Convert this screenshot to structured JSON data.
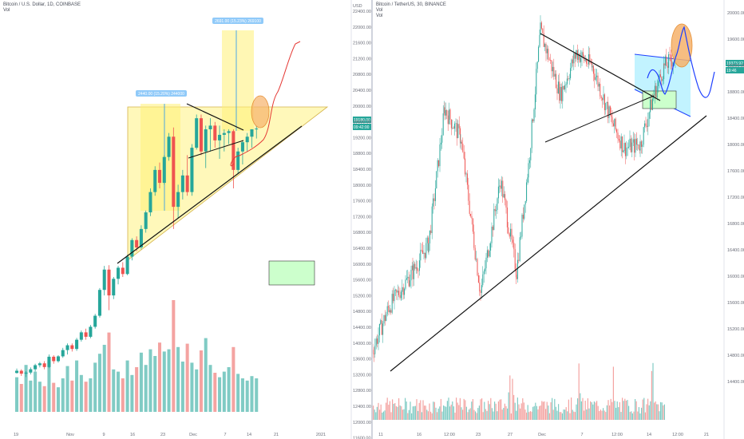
{
  "colors": {
    "up": "#26a69a",
    "down": "#ef5350",
    "vol_up": "#80cbc4",
    "vol_down": "#f4a3a1",
    "triangle_fill": "#fff59d",
    "box_fill": "#ccffcc",
    "range_fill": "#fff176",
    "range_label": "#90caf9",
    "channel_fill": "#b3f0ff",
    "ellipse_fill": "#f6b26b",
    "price_badge": "#26a69a",
    "projection_red": "#e53935",
    "projection_blue": "#1e40ff"
  },
  "left": {
    "title": "Bitcoin / U.S. Dollar, 1D, COINBASE",
    "vol_label": "Vol",
    "currency": "USD",
    "y_ticks": [
      "22400.00",
      "22000.00",
      "21600.00",
      "21200.00",
      "20800.00",
      "20400.00",
      "20000.00",
      "19600.00",
      "19200.00",
      "18800.00",
      "18400.00",
      "18000.00",
      "17600.00",
      "17200.00",
      "16800.00",
      "16400.00",
      "16000.00",
      "15600.00",
      "15200.00",
      "14800.00",
      "14400.00",
      "14000.00",
      "13600.00",
      "13200.00",
      "12800.00",
      "12400.00",
      "12000.00",
      "11600.00"
    ],
    "x_ticks": [
      "19",
      "Nov",
      "9",
      "16",
      "23",
      "Dec",
      "7",
      "14",
      "21",
      "2021"
    ],
    "price_badges": [
      "19180.00",
      "09:42:00"
    ],
    "range_labels": [
      "2440.00 (15.20%) 244000",
      "2691.00 (15.23%) 269100"
    ],
    "chart_data": {
      "type": "candlestick",
      "timeframe": "1D",
      "ylim": [
        11400,
        22600
      ],
      "candles": [
        [
          12800,
          12920,
          12780,
          12860
        ],
        [
          12860,
          12900,
          12720,
          12780
        ],
        [
          12780,
          12850,
          12690,
          12810
        ],
        [
          12810,
          12950,
          12760,
          12900
        ],
        [
          12900,
          13050,
          12840,
          13010
        ],
        [
          13010,
          13100,
          12950,
          13060
        ],
        [
          13060,
          13120,
          12900,
          12960
        ],
        [
          12960,
          13300,
          12930,
          13240
        ],
        [
          13240,
          13280,
          13050,
          13120
        ],
        [
          13120,
          13280,
          13080,
          13250
        ],
        [
          13250,
          13480,
          13210,
          13420
        ],
        [
          13420,
          13600,
          13300,
          13550
        ],
        [
          13550,
          13600,
          13380,
          13450
        ],
        [
          13450,
          13750,
          13400,
          13700
        ],
        [
          13700,
          13950,
          13650,
          13900
        ],
        [
          13900,
          14000,
          13700,
          13780
        ],
        [
          13780,
          14100,
          13740,
          14050
        ],
        [
          14050,
          14400,
          14000,
          14350
        ],
        [
          14350,
          15100,
          14300,
          15050
        ],
        [
          15050,
          15700,
          14900,
          15600
        ],
        [
          15600,
          15720,
          14500,
          14900
        ],
        [
          14900,
          15400,
          14800,
          15350
        ],
        [
          15350,
          15700,
          15200,
          15650
        ],
        [
          15650,
          15800,
          15400,
          15480
        ],
        [
          15480,
          16000,
          15450,
          15950
        ],
        [
          15950,
          16450,
          15850,
          16400
        ],
        [
          16400,
          16500,
          16100,
          16200
        ],
        [
          16200,
          16800,
          16150,
          16700
        ],
        [
          16700,
          17200,
          16600,
          17150
        ],
        [
          17150,
          17800,
          17050,
          17700
        ],
        [
          17700,
          18400,
          17600,
          18300
        ],
        [
          18300,
          18500,
          17800,
          17950
        ],
        [
          17950,
          18700,
          17900,
          18650
        ],
        [
          18650,
          19300,
          18550,
          19200
        ],
        [
          19200,
          19450,
          16700,
          17300
        ],
        [
          17300,
          17900,
          17000,
          17700
        ],
        [
          17700,
          18300,
          17500,
          18150
        ],
        [
          18150,
          18700,
          17600,
          17700
        ],
        [
          17700,
          19000,
          17600,
          18900
        ],
        [
          18900,
          19800,
          18850,
          19700
        ],
        [
          19700,
          19800,
          18700,
          18800
        ],
        [
          18800,
          19500,
          18350,
          19400
        ],
        [
          19400,
          19700,
          18800,
          19500
        ],
        [
          19500,
          19600,
          18900,
          19100
        ],
        [
          19100,
          19500,
          18600,
          19250
        ],
        [
          19250,
          19400,
          18800,
          19300
        ],
        [
          19300,
          19400,
          19000,
          19350
        ],
        [
          19350,
          19400,
          17800,
          18300
        ],
        [
          18300,
          18900,
          18200,
          18800
        ],
        [
          18800,
          19100,
          18450,
          19050
        ],
        [
          19050,
          19300,
          18800,
          19200
        ],
        [
          19200,
          19400,
          18900,
          19400
        ],
        [
          19400,
          19500,
          19150,
          19420
        ]
      ],
      "volume": [
        0.31,
        0.25,
        0.42,
        0.28,
        0.36,
        0.27,
        0.23,
        0.45,
        0.26,
        0.22,
        0.3,
        0.41,
        0.28,
        0.46,
        0.33,
        0.27,
        0.3,
        0.44,
        0.52,
        0.6,
        0.71,
        0.38,
        0.36,
        0.3,
        0.46,
        0.33,
        0.4,
        0.53,
        0.42,
        0.56,
        0.5,
        0.62,
        0.54,
        0.56,
        1.0,
        0.58,
        0.45,
        0.61,
        0.44,
        0.38,
        0.55,
        0.66,
        0.42,
        0.35,
        0.31,
        0.36,
        0.4,
        0.58,
        0.34,
        0.3,
        0.28,
        0.32,
        0.3
      ]
    }
  },
  "right": {
    "title": "Bitcoin / TetherUS, 30, BINANCE",
    "vol_label_1": "Vol",
    "vol_label_2": "Vol",
    "y_ticks": [
      "20000.00",
      "19600.00",
      "19200.00",
      "18800.00",
      "18400.00",
      "18000.00",
      "17600.00",
      "17200.00",
      "16800.00",
      "16400.00",
      "16000.00",
      "15600.00",
      "15200.00",
      "14800.00",
      "14400.00"
    ],
    "x_ticks": [
      "11",
      "16",
      "12:00",
      "23",
      "27",
      "Dec",
      "7",
      "12:00",
      "14",
      "12:00",
      "21"
    ],
    "price_badges": [
      "19373.92",
      "19:46"
    ],
    "chart_data": {
      "type": "candlestick",
      "timeframe": "30",
      "ylim": [
        14300,
        20050
      ],
      "path_keypoints": [
        [
          0,
          15200
        ],
        [
          20,
          15800
        ],
        [
          50,
          16300
        ],
        [
          70,
          16700
        ],
        [
          90,
          18600
        ],
        [
          110,
          18200
        ],
        [
          135,
          16000
        ],
        [
          160,
          17600
        ],
        [
          180,
          16300
        ],
        [
          195,
          17800
        ],
        [
          210,
          19700
        ],
        [
          235,
          18800
        ],
        [
          255,
          19400
        ],
        [
          275,
          19200
        ],
        [
          300,
          18400
        ],
        [
          315,
          18050
        ],
        [
          335,
          18100
        ],
        [
          352,
          18800
        ],
        [
          365,
          19200
        ],
        [
          380,
          19350
        ]
      ]
    }
  }
}
